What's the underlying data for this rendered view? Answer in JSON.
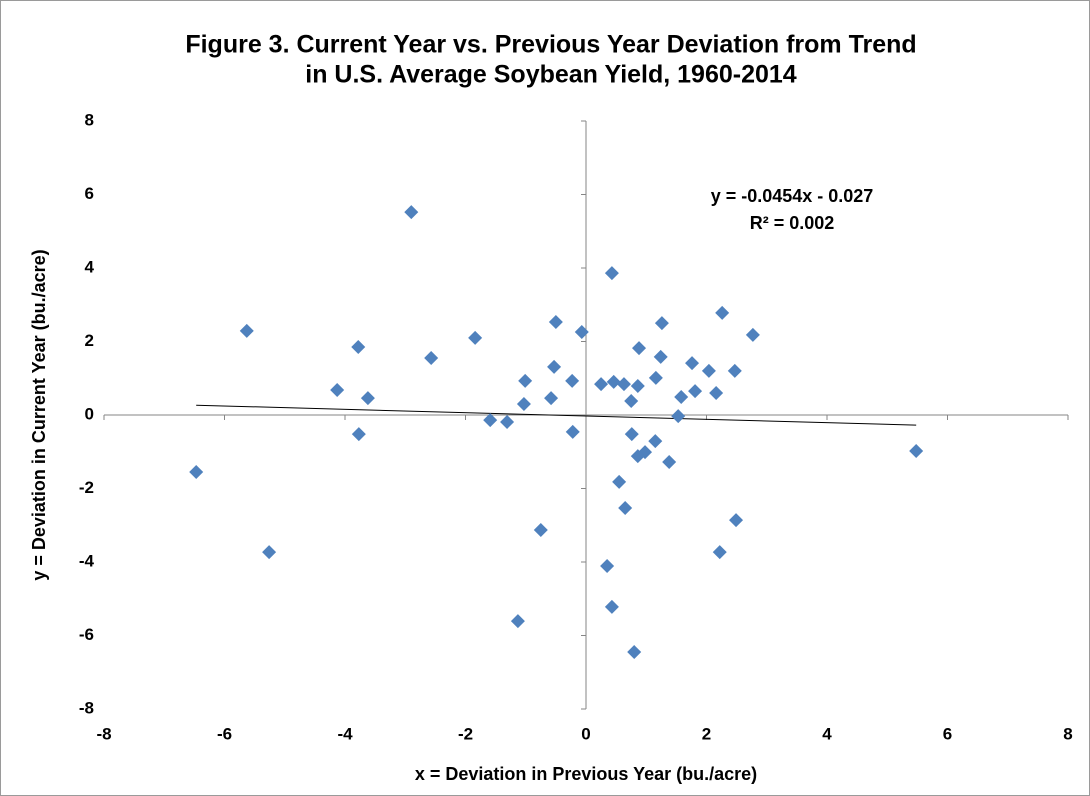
{
  "chart_data": {
    "type": "scatter",
    "title": [
      "Figure 3. Current Year vs. Previous Year Deviation from Trend",
      "in U.S. Average Soybean Yield, 1960-2014"
    ],
    "x_label": "x = Deviation in Previous Year (bu./acre)",
    "y_label": "y = Deviation in Current Year (bu./acre)",
    "annotations": [
      "y = -0.0454x - 0.027",
      "R² = 0.002"
    ],
    "trendline": {
      "slope": -0.0454,
      "intercept": -0.027
    },
    "color": "#4f81bd",
    "x": [
      -2.9,
      0.43,
      -5.63,
      2.26,
      -0.5,
      1.26,
      -0.07,
      2.77,
      -1.84,
      -3.78,
      0.88,
      -2.57,
      1.24,
      1.76,
      -0.53,
      2.04,
      2.47,
      1.16,
      -1.01,
      -0.23,
      0.25,
      0.46,
      0.63,
      0.86,
      -4.13,
      1.81,
      2.16,
      1.58,
      -3.62,
      -0.58,
      0.75,
      -1.03,
      1.53,
      -1.59,
      -1.31,
      -0.22,
      -3.77,
      0.76,
      1.15,
      0.98,
      0.86,
      5.48,
      1.38,
      -6.47,
      0.55,
      0.65,
      2.49,
      -0.75,
      -5.26,
      2.22,
      0.35,
      0.43,
      -1.13,
      0.8
    ],
    "values": [
      5.52,
      3.86,
      2.29,
      2.78,
      2.53,
      2.5,
      2.26,
      2.18,
      2.1,
      1.85,
      1.82,
      1.55,
      1.58,
      1.41,
      1.31,
      1.2,
      1.2,
      1.01,
      0.93,
      0.93,
      0.84,
      0.9,
      0.84,
      0.79,
      0.68,
      0.65,
      0.6,
      0.49,
      0.46,
      0.46,
      0.38,
      0.3,
      -0.03,
      -0.14,
      -0.19,
      -0.46,
      -0.52,
      -0.52,
      -0.71,
      -1.01,
      -1.12,
      -0.98,
      -1.28,
      -1.55,
      -1.82,
      -2.53,
      -2.86,
      -3.13,
      -3.73,
      -3.73,
      -4.11,
      -5.22,
      -5.61,
      -6.45
    ],
    "xlim": [
      -8,
      8
    ],
    "xticks": [
      -8,
      -6,
      -4,
      -2,
      0,
      2,
      4,
      6,
      8
    ],
    "ylim": [
      -8,
      8
    ],
    "yticks": [
      -8,
      -6,
      -4,
      -2,
      0,
      2,
      4,
      6,
      8
    ]
  }
}
